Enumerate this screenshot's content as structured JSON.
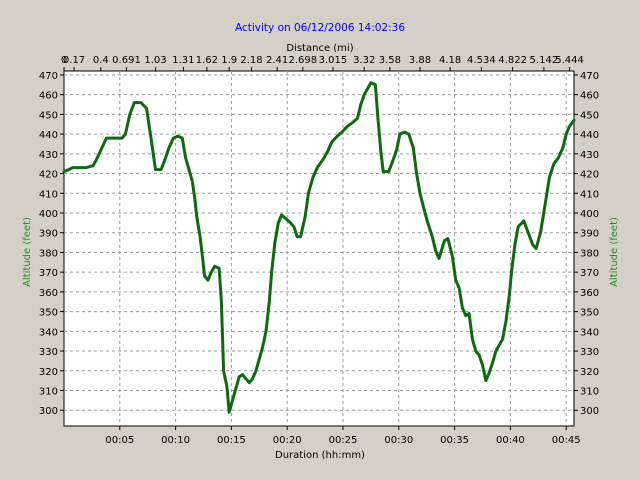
{
  "chart_data": {
    "type": "line",
    "title": "Activity on 06/12/2006 14:02:36",
    "xlabel": "Duration (hh:mm)",
    "x2label": "Distance (mi)",
    "ylabel": "Altitude (feet)",
    "y2label": "Altitude (feet)",
    "xlim": [
      0,
      45.7
    ],
    "ylim": [
      292,
      472
    ],
    "y_ticks": [
      300,
      310,
      320,
      330,
      340,
      350,
      360,
      370,
      380,
      390,
      400,
      410,
      420,
      430,
      440,
      450,
      460,
      470
    ],
    "x_ticks": [
      {
        "x": 5,
        "label": "00:05"
      },
      {
        "x": 10,
        "label": "00:10"
      },
      {
        "x": 15,
        "label": "00:15"
      },
      {
        "x": 20,
        "label": "00:20"
      },
      {
        "x": 25,
        "label": "00:25"
      },
      {
        "x": 30,
        "label": "00:30"
      },
      {
        "x": 35,
        "label": "00:35"
      },
      {
        "x": 40,
        "label": "00:40"
      },
      {
        "x": 45,
        "label": "00:45"
      }
    ],
    "x2_ticks": [
      {
        "x": 0,
        "label": "0"
      },
      {
        "x": 0.9,
        "label": "0.17"
      },
      {
        "x": 3.3,
        "label": "0.4"
      },
      {
        "x": 5.6,
        "label": "0.691"
      },
      {
        "x": 8.2,
        "label": "1.03"
      },
      {
        "x": 10.7,
        "label": "1.31"
      },
      {
        "x": 12.8,
        "label": "1.62"
      },
      {
        "x": 14.8,
        "label": "1.9"
      },
      {
        "x": 16.8,
        "label": "2.18"
      },
      {
        "x": 19.1,
        "label": "2.41"
      },
      {
        "x": 21.4,
        "label": "2.698"
      },
      {
        "x": 24.1,
        "label": "3.015"
      },
      {
        "x": 26.9,
        "label": "3.32"
      },
      {
        "x": 29.2,
        "label": "3.58"
      },
      {
        "x": 31.9,
        "label": "3.88"
      },
      {
        "x": 34.6,
        "label": "4.18"
      },
      {
        "x": 37.4,
        "label": "4.534"
      },
      {
        "x": 40.2,
        "label": "4.822"
      },
      {
        "x": 43.0,
        "label": "5.142"
      },
      {
        "x": 45.3,
        "label": "5.444"
      }
    ],
    "grid": true,
    "series": [
      {
        "color": "#0e6a0e",
        "points": [
          [
            0.0,
            421
          ],
          [
            0.4,
            422
          ],
          [
            0.8,
            423
          ],
          [
            2.0,
            423
          ],
          [
            2.6,
            424
          ],
          [
            2.9,
            427
          ],
          [
            3.4,
            433
          ],
          [
            3.8,
            438
          ],
          [
            4.6,
            438
          ],
          [
            5.2,
            438
          ],
          [
            5.5,
            440
          ],
          [
            5.9,
            450
          ],
          [
            6.3,
            456
          ],
          [
            6.9,
            456
          ],
          [
            7.4,
            453
          ],
          [
            7.8,
            438
          ],
          [
            8.2,
            422
          ],
          [
            8.7,
            422
          ],
          [
            9.1,
            428
          ],
          [
            9.4,
            433
          ],
          [
            9.8,
            438
          ],
          [
            10.2,
            439
          ],
          [
            10.6,
            438
          ],
          [
            10.9,
            428
          ],
          [
            11.2,
            422
          ],
          [
            11.5,
            416
          ],
          [
            11.7,
            408
          ],
          [
            11.9,
            398
          ],
          [
            12.2,
            388
          ],
          [
            12.4,
            378
          ],
          [
            12.6,
            368
          ],
          [
            12.9,
            366
          ],
          [
            13.2,
            370
          ],
          [
            13.5,
            373
          ],
          [
            13.9,
            372
          ],
          [
            14.1,
            355
          ],
          [
            14.3,
            320
          ],
          [
            14.6,
            312
          ],
          [
            14.8,
            299
          ],
          [
            15.0,
            303
          ],
          [
            15.3,
            309
          ],
          [
            15.5,
            313
          ],
          [
            15.7,
            317
          ],
          [
            16.0,
            318
          ],
          [
            16.3,
            316
          ],
          [
            16.6,
            314
          ],
          [
            16.9,
            316
          ],
          [
            17.2,
            320
          ],
          [
            17.5,
            326
          ],
          [
            17.8,
            332
          ],
          [
            18.1,
            340
          ],
          [
            18.4,
            355
          ],
          [
            18.6,
            370
          ],
          [
            18.9,
            385
          ],
          [
            19.2,
            395
          ],
          [
            19.5,
            399
          ],
          [
            19.9,
            397
          ],
          [
            20.3,
            395
          ],
          [
            20.6,
            393
          ],
          [
            20.9,
            388
          ],
          [
            21.2,
            388
          ],
          [
            21.6,
            398
          ],
          [
            21.9,
            410
          ],
          [
            22.3,
            418
          ],
          [
            22.7,
            423
          ],
          [
            23.2,
            427
          ],
          [
            23.6,
            431
          ],
          [
            24.0,
            436
          ],
          [
            24.5,
            439
          ],
          [
            24.9,
            441
          ],
          [
            25.4,
            444
          ],
          [
            25.9,
            446
          ],
          [
            26.3,
            448
          ],
          [
            26.6,
            455
          ],
          [
            26.9,
            460
          ],
          [
            27.2,
            463
          ],
          [
            27.5,
            466
          ],
          [
            27.9,
            465
          ],
          [
            28.1,
            450
          ],
          [
            28.4,
            431
          ],
          [
            28.6,
            421
          ],
          [
            29.1,
            421
          ],
          [
            29.5,
            427
          ],
          [
            29.8,
            432
          ],
          [
            30.1,
            440
          ],
          [
            30.5,
            441
          ],
          [
            30.9,
            440
          ],
          [
            31.3,
            433
          ],
          [
            31.6,
            420
          ],
          [
            31.9,
            410
          ],
          [
            32.3,
            401
          ],
          [
            32.6,
            395
          ],
          [
            33.0,
            388
          ],
          [
            33.3,
            381
          ],
          [
            33.6,
            377
          ],
          [
            34.1,
            386
          ],
          [
            34.4,
            387
          ],
          [
            34.8,
            378
          ],
          [
            35.1,
            366
          ],
          [
            35.4,
            362
          ],
          [
            35.7,
            352
          ],
          [
            36.0,
            348
          ],
          [
            36.3,
            349
          ],
          [
            36.6,
            336
          ],
          [
            36.9,
            330
          ],
          [
            37.2,
            328
          ],
          [
            37.5,
            323
          ],
          [
            37.8,
            315
          ],
          [
            38.1,
            319
          ],
          [
            38.4,
            324
          ],
          [
            38.7,
            330
          ],
          [
            39.0,
            333
          ],
          [
            39.3,
            336
          ],
          [
            39.6,
            345
          ],
          [
            39.9,
            358
          ],
          [
            40.1,
            370
          ],
          [
            40.4,
            384
          ],
          [
            40.7,
            393
          ],
          [
            41.2,
            396
          ],
          [
            41.6,
            390
          ],
          [
            42.0,
            384
          ],
          [
            42.3,
            382
          ],
          [
            42.7,
            390
          ],
          [
            43.1,
            404
          ],
          [
            43.5,
            418
          ],
          [
            43.9,
            425
          ],
          [
            44.3,
            428
          ],
          [
            44.7,
            433
          ],
          [
            45.0,
            440
          ],
          [
            45.3,
            444
          ],
          [
            45.7,
            447
          ]
        ]
      }
    ]
  }
}
